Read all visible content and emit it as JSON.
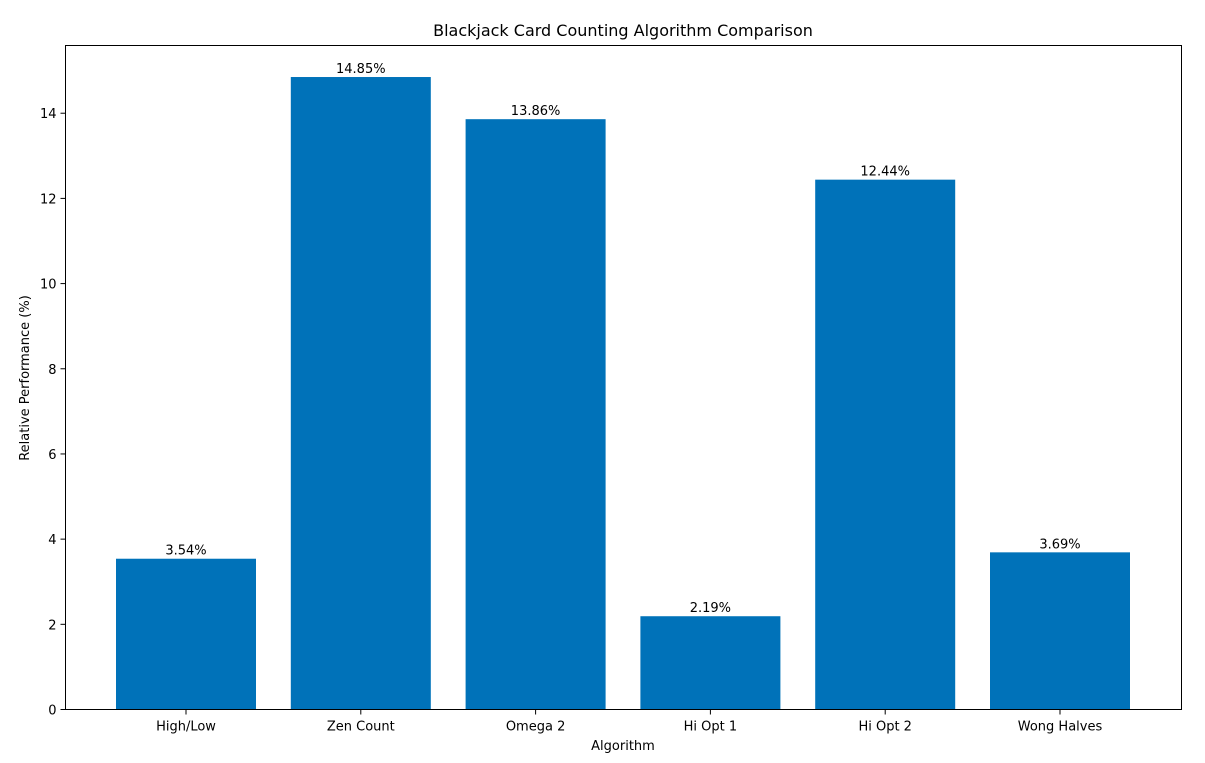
{
  "chart_data": {
    "type": "bar",
    "title": "Blackjack Card Counting Algorithm Comparison",
    "xlabel": "Algorithm",
    "ylabel": "Relative Performance (%)",
    "categories": [
      "High/Low",
      "Zen Count",
      "Omega 2",
      "Hi Opt 1",
      "Hi Opt 2",
      "Wong Halves"
    ],
    "values": [
      3.54,
      14.85,
      13.86,
      2.19,
      12.44,
      3.69
    ],
    "value_labels": [
      "3.54%",
      "14.85%",
      "13.86%",
      "2.19%",
      "12.44%",
      "3.69%"
    ],
    "ylim": [
      0,
      15.59
    ],
    "yticks": [
      0,
      2,
      4,
      6,
      8,
      10,
      12,
      14
    ],
    "grid": false,
    "bar_color": "#0072B9"
  }
}
